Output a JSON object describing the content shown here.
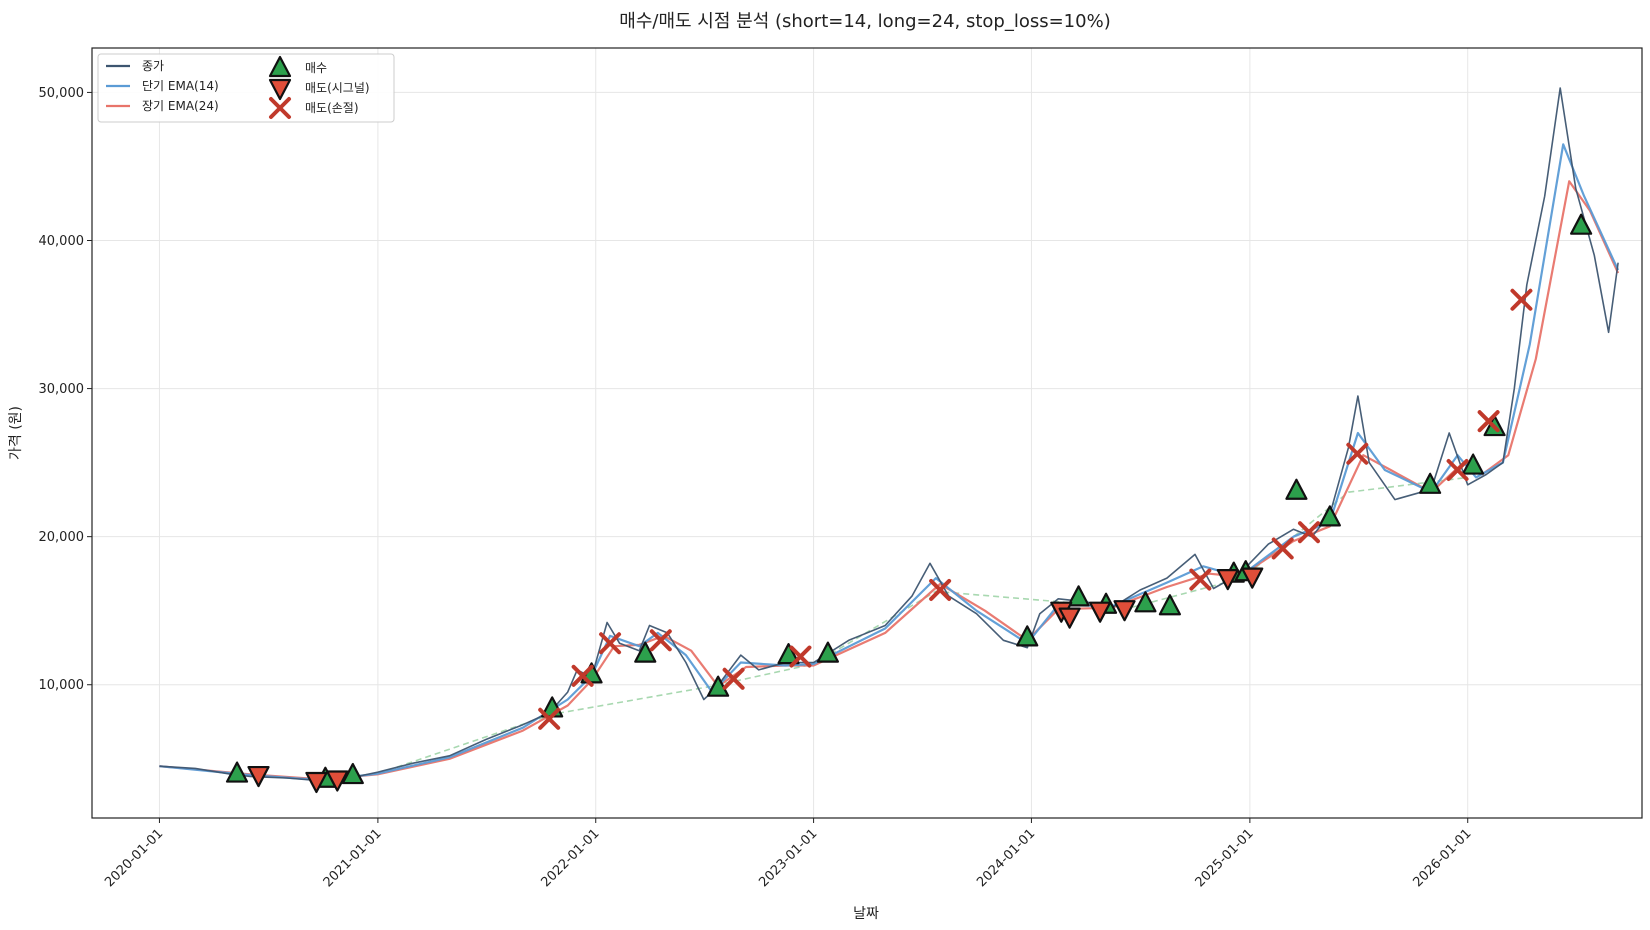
{
  "chart_data": {
    "type": "line",
    "title": "매수/매도 시점 분석 (short=14, long=24, stop_loss=10%)",
    "xlabel": "날짜",
    "ylabel": "가격 (원)",
    "grid": true,
    "legend_position": "top-left",
    "x_range": [
      "2019-09-10",
      "2026-10-20"
    ],
    "ylim": [
      1000,
      53000
    ],
    "x_ticks": [
      "2020-01-01",
      "2021-01-01",
      "2022-01-01",
      "2023-01-01",
      "2024-01-01",
      "2025-01-01",
      "2026-01-01"
    ],
    "y_ticks": [
      10000,
      20000,
      30000,
      40000,
      50000
    ],
    "y_tick_labels": [
      "10,000",
      "20,000",
      "30,000",
      "40,000",
      "50,000"
    ],
    "series": [
      {
        "name": "종가",
        "color": "#3d5570",
        "points": [
          [
            "2020-01-01",
            4500
          ],
          [
            "2020-03-01",
            4350
          ],
          [
            "2020-05-01",
            3950
          ],
          [
            "2020-06-01",
            3800
          ],
          [
            "2020-08-01",
            3700
          ],
          [
            "2020-10-01",
            3500
          ],
          [
            "2020-11-15",
            3700
          ],
          [
            "2021-01-01",
            4100
          ],
          [
            "2021-03-01",
            4700
          ],
          [
            "2021-05-01",
            5200
          ],
          [
            "2021-07-01",
            6300
          ],
          [
            "2021-09-01",
            7300
          ],
          [
            "2021-10-15",
            8100
          ],
          [
            "2021-11-15",
            9500
          ],
          [
            "2021-12-01",
            11000
          ],
          [
            "2021-12-25",
            10500
          ],
          [
            "2022-01-20",
            14200
          ],
          [
            "2022-02-10",
            12800
          ],
          [
            "2022-03-15",
            12300
          ],
          [
            "2022-04-01",
            14000
          ],
          [
            "2022-05-01",
            13500
          ],
          [
            "2022-06-01",
            11500
          ],
          [
            "2022-07-01",
            9000
          ],
          [
            "2022-07-20",
            9700
          ],
          [
            "2022-09-01",
            12000
          ],
          [
            "2022-10-01",
            11000
          ],
          [
            "2022-11-15",
            11500
          ],
          [
            "2023-01-01",
            11500
          ],
          [
            "2023-03-01",
            13000
          ],
          [
            "2023-05-01",
            14000
          ],
          [
            "2023-06-15",
            16000
          ],
          [
            "2023-07-15",
            18200
          ],
          [
            "2023-08-15",
            16000
          ],
          [
            "2023-10-01",
            14800
          ],
          [
            "2023-11-15",
            13000
          ],
          [
            "2023-12-25",
            12500
          ],
          [
            "2024-01-15",
            14800
          ],
          [
            "2024-02-15",
            15800
          ],
          [
            "2024-04-01",
            15600
          ],
          [
            "2024-05-15",
            15200
          ],
          [
            "2024-07-01",
            16400
          ],
          [
            "2024-08-15",
            17200
          ],
          [
            "2024-10-01",
            18800
          ],
          [
            "2024-11-01",
            16500
          ],
          [
            "2024-12-15",
            17500
          ],
          [
            "2025-02-01",
            19500
          ],
          [
            "2025-03-15",
            20500
          ],
          [
            "2025-04-15",
            20000
          ],
          [
            "2025-05-15",
            21500
          ],
          [
            "2025-06-15",
            26000
          ],
          [
            "2025-07-01",
            29500
          ],
          [
            "2025-07-20",
            25000
          ],
          [
            "2025-09-01",
            22500
          ],
          [
            "2025-11-01",
            23200
          ],
          [
            "2025-12-01",
            27000
          ],
          [
            "2026-01-01",
            23500
          ],
          [
            "2026-02-01",
            24200
          ],
          [
            "2026-03-01",
            25000
          ],
          [
            "2026-03-20",
            30000
          ],
          [
            "2026-04-10",
            37000
          ],
          [
            "2026-05-10",
            43000
          ],
          [
            "2026-06-05",
            50300
          ],
          [
            "2026-07-01",
            43500
          ],
          [
            "2026-08-01",
            39000
          ],
          [
            "2026-08-25",
            33800
          ],
          [
            "2026-09-10",
            38500
          ]
        ]
      },
      {
        "name": "단기 EMA(14)",
        "color": "#5b9bd5",
        "points": [
          [
            "2020-01-01",
            4500
          ],
          [
            "2020-06-01",
            3900
          ],
          [
            "2020-10-01",
            3550
          ],
          [
            "2021-01-01",
            4000
          ],
          [
            "2021-05-01",
            5100
          ],
          [
            "2021-09-01",
            7100
          ],
          [
            "2021-11-15",
            9000
          ],
          [
            "2021-12-25",
            10600
          ],
          [
            "2022-01-25",
            13300
          ],
          [
            "2022-03-15",
            12600
          ],
          [
            "2022-04-15",
            13500
          ],
          [
            "2022-06-01",
            12000
          ],
          [
            "2022-07-15",
            9500
          ],
          [
            "2022-09-01",
            11500
          ],
          [
            "2022-11-15",
            11300
          ],
          [
            "2023-01-01",
            11400
          ],
          [
            "2023-05-01",
            13800
          ],
          [
            "2023-07-25",
            17200
          ],
          [
            "2023-10-01",
            15000
          ],
          [
            "2023-12-25",
            12800
          ],
          [
            "2024-02-15",
            15400
          ],
          [
            "2024-05-15",
            15300
          ],
          [
            "2024-08-15",
            16900
          ],
          [
            "2024-10-15",
            18000
          ],
          [
            "2024-12-15",
            17300
          ],
          [
            "2025-03-15",
            20000
          ],
          [
            "2025-05-15",
            21000
          ],
          [
            "2025-07-01",
            27000
          ],
          [
            "2025-08-15",
            24500
          ],
          [
            "2025-11-01",
            23000
          ],
          [
            "2025-12-15",
            25500
          ],
          [
            "2026-01-15",
            24000
          ],
          [
            "2026-03-01",
            25000
          ],
          [
            "2026-04-15",
            33000
          ],
          [
            "2026-06-10",
            46500
          ],
          [
            "2026-07-15",
            43000
          ],
          [
            "2026-09-10",
            38000
          ]
        ]
      },
      {
        "name": "장기 EMA(24)",
        "color": "#e8746a",
        "points": [
          [
            "2020-01-01",
            4500
          ],
          [
            "2020-06-01",
            3950
          ],
          [
            "2020-10-01",
            3600
          ],
          [
            "2021-01-01",
            3950
          ],
          [
            "2021-05-01",
            5000
          ],
          [
            "2021-09-01",
            6900
          ],
          [
            "2021-11-15",
            8600
          ],
          [
            "2021-12-25",
            10300
          ],
          [
            "2022-02-01",
            12600
          ],
          [
            "2022-03-15",
            12700
          ],
          [
            "2022-04-25",
            13300
          ],
          [
            "2022-06-10",
            12300
          ],
          [
            "2022-07-25",
            9900
          ],
          [
            "2022-09-10",
            11200
          ],
          [
            "2022-11-15",
            11300
          ],
          [
            "2023-01-01",
            11300
          ],
          [
            "2023-05-01",
            13500
          ],
          [
            "2023-08-01",
            16800
          ],
          [
            "2023-10-15",
            15000
          ],
          [
            "2023-12-25",
            13000
          ],
          [
            "2024-02-15",
            15100
          ],
          [
            "2024-05-15",
            15200
          ],
          [
            "2024-08-15",
            16600
          ],
          [
            "2024-10-25",
            17500
          ],
          [
            "2024-12-15",
            17300
          ],
          [
            "2025-03-15",
            19700
          ],
          [
            "2025-05-15",
            20700
          ],
          [
            "2025-07-10",
            25500
          ],
          [
            "2025-08-25",
            24500
          ],
          [
            "2025-11-01",
            23000
          ],
          [
            "2025-12-25",
            25000
          ],
          [
            "2026-01-25",
            24200
          ],
          [
            "2026-03-10",
            25500
          ],
          [
            "2026-04-25",
            32000
          ],
          [
            "2026-06-20",
            44000
          ],
          [
            "2026-07-25",
            42000
          ],
          [
            "2026-09-10",
            37800
          ]
        ]
      }
    ],
    "buy_sell_path": {
      "color": "#a8d8b0",
      "points": [
        [
          "2021-01-01",
          4000
        ],
        [
          "2021-10-20",
          8000
        ],
        [
          "2022-07-15",
          9900
        ],
        [
          "2023-01-01",
          11400
        ],
        [
          "2023-07-25",
          16300
        ],
        [
          "2024-06-15",
          15200
        ],
        [
          "2024-12-20",
          17200
        ],
        [
          "2025-06-15",
          23000
        ],
        [
          "2026-01-01",
          24000
        ]
      ]
    },
    "markers": [
      {
        "name": "매수",
        "type": "buy",
        "color": "#2ca04c",
        "points": [
          [
            "2020-05-10",
            4000
          ],
          [
            "2020-10-05",
            3650
          ],
          [
            "2020-11-20",
            3900
          ],
          [
            "2021-10-20",
            8400
          ],
          [
            "2021-12-25",
            10700
          ],
          [
            "2022-03-25",
            12100
          ],
          [
            "2022-07-25",
            9800
          ],
          [
            "2022-11-20",
            12000
          ],
          [
            "2023-01-25",
            12100
          ],
          [
            "2023-12-25",
            13200
          ],
          [
            "2024-03-20",
            15900
          ],
          [
            "2024-05-05",
            15400
          ],
          [
            "2024-07-10",
            15500
          ],
          [
            "2024-08-20",
            15300
          ],
          [
            "2024-12-05",
            17500
          ],
          [
            "2024-12-25",
            17600
          ],
          [
            "2025-03-20",
            23100
          ],
          [
            "2025-05-15",
            21300
          ],
          [
            "2025-10-30",
            23500
          ],
          [
            "2026-01-10",
            24800
          ],
          [
            "2026-02-15",
            27400
          ],
          [
            "2026-07-10",
            41000
          ]
        ]
      },
      {
        "name": "매도(시그널)",
        "type": "sell_signal",
        "color": "#e04e39",
        "points": [
          [
            "2020-06-15",
            3900
          ],
          [
            "2020-09-20",
            3500
          ],
          [
            "2020-10-25",
            3600
          ],
          [
            "2024-02-20",
            15000
          ],
          [
            "2024-03-05",
            14600
          ],
          [
            "2024-04-25",
            15000
          ],
          [
            "2024-06-05",
            15100
          ],
          [
            "2024-11-25",
            17200
          ],
          [
            "2025-01-05",
            17300
          ]
        ]
      },
      {
        "name": "매도(손절)",
        "type": "sell_stoploss",
        "color": "#c0392b",
        "points": [
          [
            "2021-10-15",
            7700
          ],
          [
            "2021-12-10",
            10600
          ],
          [
            "2022-01-25",
            12800
          ],
          [
            "2022-04-20",
            13000
          ],
          [
            "2022-08-20",
            10400
          ],
          [
            "2022-12-10",
            11900
          ],
          [
            "2023-08-01",
            16400
          ],
          [
            "2024-10-10",
            17100
          ],
          [
            "2025-02-25",
            19200
          ],
          [
            "2025-04-10",
            20300
          ],
          [
            "2025-06-30",
            25600
          ],
          [
            "2025-12-15",
            24500
          ],
          [
            "2026-02-05",
            27800
          ],
          [
            "2026-04-01",
            36000
          ]
        ]
      }
    ]
  }
}
